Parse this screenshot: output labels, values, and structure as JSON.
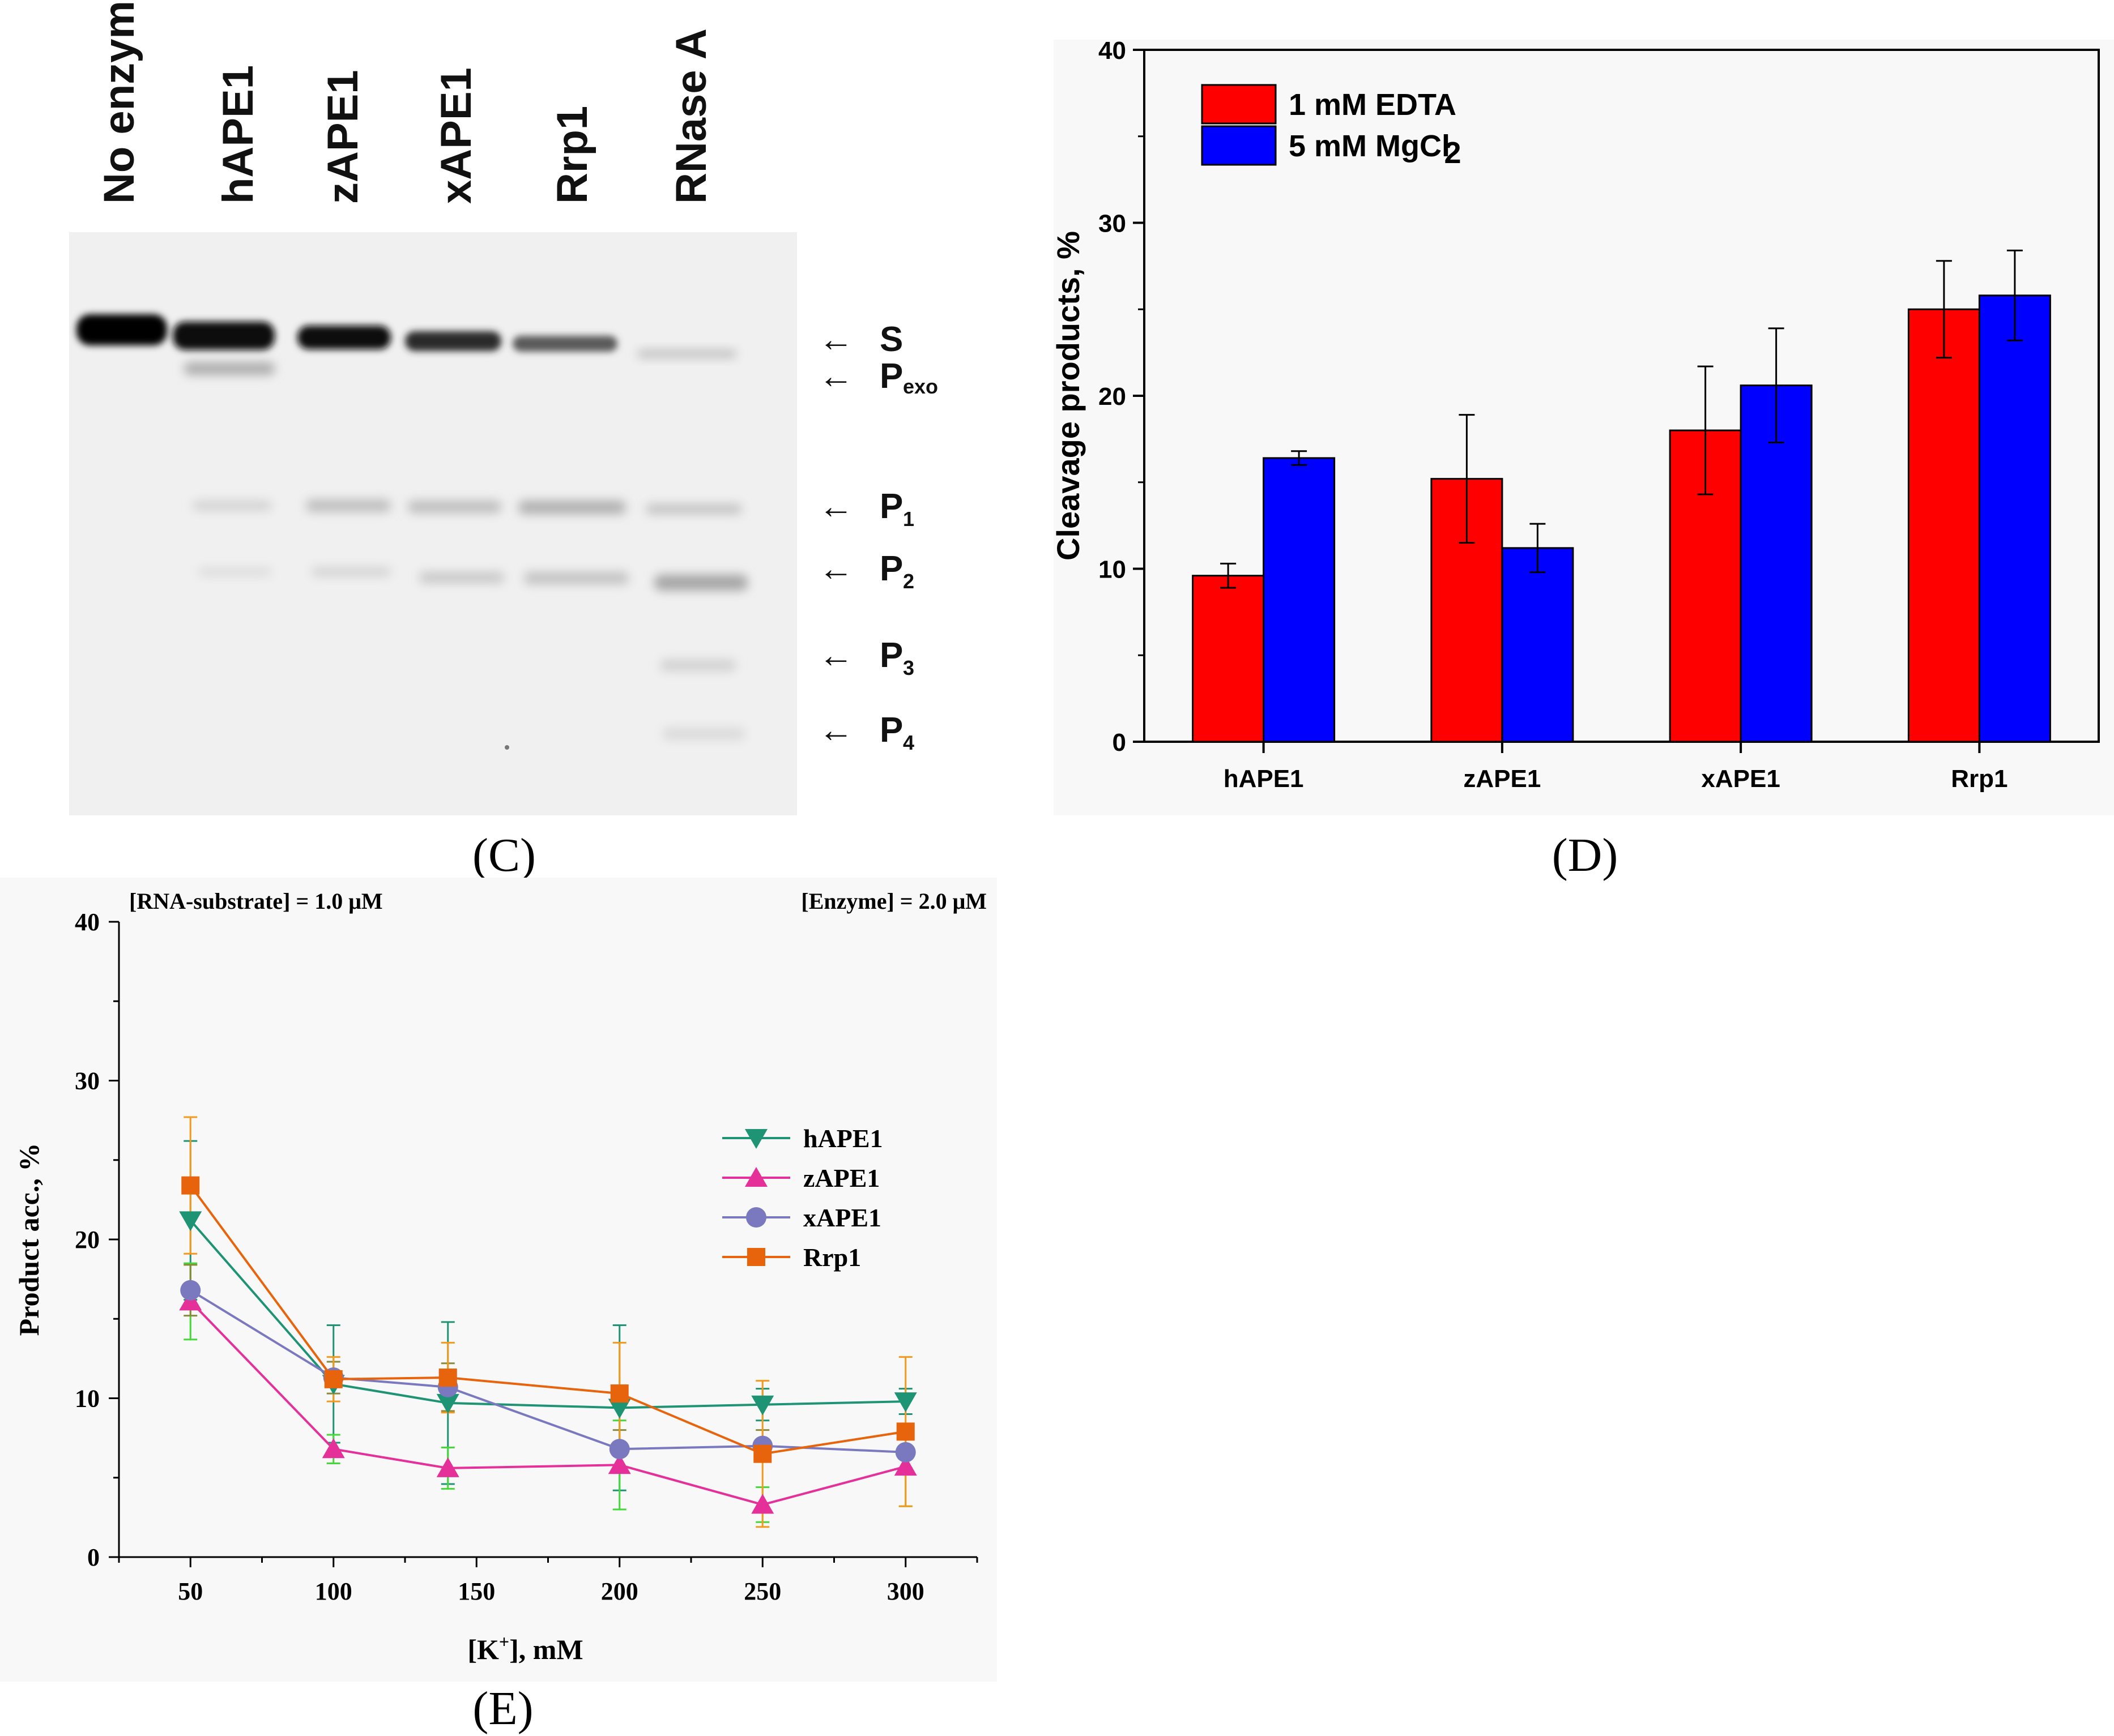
{
  "panel_c": {
    "label": "(C)",
    "lanes": [
      "No enzyme",
      "hAPE1",
      "zAPE1",
      "xAPE1",
      "Rrp1",
      "RNase A"
    ],
    "bands": [
      {
        "arrow": "←",
        "name": "S",
        "sub": ""
      },
      {
        "arrow": "←",
        "name": "P",
        "sub": "exo"
      },
      {
        "arrow": "←",
        "name": "P",
        "sub": "1"
      },
      {
        "arrow": "←",
        "name": "P",
        "sub": "2"
      },
      {
        "arrow": "←",
        "name": "P",
        "sub": "3"
      },
      {
        "arrow": "←",
        "name": "P",
        "sub": "4"
      }
    ]
  },
  "panel_d": {
    "label": "(D)",
    "legend": [
      {
        "text": "1 mM EDTA",
        "sub": "",
        "color": "#ff0000"
      },
      {
        "text": "5 mM MgCl",
        "sub": "2",
        "color": "#0000ff"
      }
    ]
  },
  "panel_e": {
    "label": "(E)",
    "conditions": {
      "left": "[RNA-substrate] = 1.0 μM",
      "right": "[Enzyme] = 2.0 μM"
    },
    "xlabel_pre": "[K",
    "xlabel_sup": "+",
    "xlabel_post": "], mM"
  },
  "chart_data": [
    {
      "type": "bar",
      "panel": "D",
      "categories": [
        "hAPE1",
        "zAPE1",
        "xAPE1",
        "Rrp1"
      ],
      "series": [
        {
          "name": "1 mM EDTA",
          "color": "#ff0000",
          "values": [
            9.6,
            15.2,
            18.0,
            25.0
          ],
          "errors": [
            0.7,
            3.7,
            3.7,
            2.8
          ]
        },
        {
          "name": "5 mM MgCl2",
          "color": "#0000ff",
          "values": [
            16.4,
            11.2,
            20.6,
            25.8
          ],
          "errors": [
            0.4,
            1.4,
            3.3,
            2.6
          ]
        }
      ],
      "ylabel": "Cleavage products, %",
      "xlabel": "",
      "ylim": [
        0,
        40
      ],
      "yticks": [
        0,
        10,
        20,
        30,
        40
      ]
    },
    {
      "type": "line",
      "panel": "E",
      "x": [
        50,
        100,
        140,
        200,
        250,
        300
      ],
      "xticks": [
        50,
        100,
        150,
        200,
        250,
        300
      ],
      "xlim": [
        25,
        325
      ],
      "ylim": [
        0,
        40
      ],
      "yticks": [
        0,
        10,
        20,
        30,
        40
      ],
      "ylabel": "Product acc., %",
      "xlabel": "[K+], mM",
      "series": [
        {
          "name": "hAPE1",
          "color": "#1e9474",
          "marker": "triangle-down",
          "values": [
            21.2,
            10.9,
            9.7,
            9.4,
            9.6,
            9.8
          ],
          "errors": [
            5.0,
            3.7,
            5.1,
            5.2,
            1.0,
            0.8
          ]
        },
        {
          "name": "zAPE1",
          "color": "#e5309a",
          "marker": "triangle-up",
          "values": [
            16.1,
            6.8,
            5.6,
            5.8,
            3.3,
            5.7
          ],
          "errors": [
            2.4,
            0.9,
            1.3,
            2.8,
            1.1,
            2.5
          ]
        },
        {
          "name": "xAPE1",
          "color": "#7a79c0",
          "marker": "circle",
          "values": [
            16.8,
            11.3,
            10.7,
            6.8,
            7.0,
            6.6
          ],
          "errors": [
            1.6,
            1.0,
            1.5,
            1.2,
            1.0,
            1.0
          ]
        },
        {
          "name": "Rrp1",
          "color": "#e8640c",
          "marker": "square",
          "values": [
            23.4,
            11.2,
            11.3,
            10.3,
            6.5,
            7.9
          ],
          "errors": [
            4.3,
            1.4,
            2.2,
            3.2,
            4.6,
            4.7
          ]
        }
      ]
    }
  ]
}
